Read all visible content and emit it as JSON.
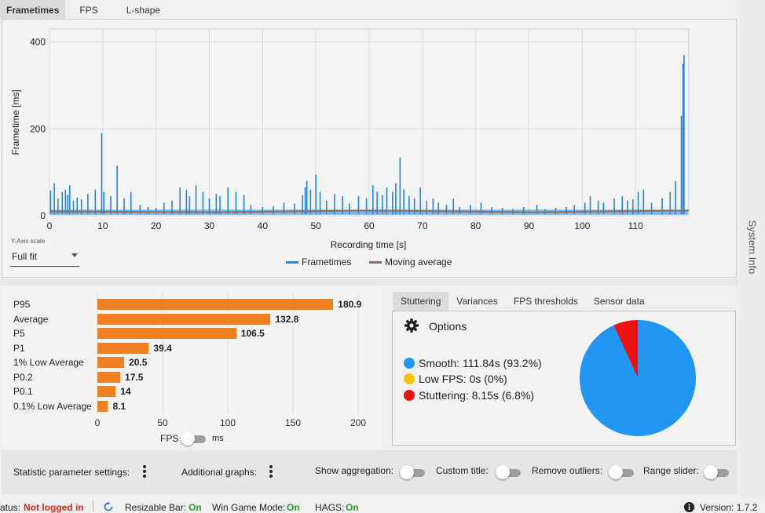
{
  "tabs": [
    "Frametimes",
    "FPS",
    "L-shape"
  ],
  "side_label": "System Info",
  "frametime_chart": {
    "ylabel": "Frametime [ms]",
    "xlabel": "Recording time [s]",
    "y_ticks": [
      "0",
      "200",
      "400"
    ],
    "x_ticks": [
      "0",
      "10",
      "20",
      "30",
      "40",
      "50",
      "60",
      "70",
      "80",
      "90",
      "100",
      "110"
    ],
    "y_axis_scale_label": "Y-Axis scale",
    "y_axis_scale_value": "Full fit",
    "legend": [
      {
        "label": "Frametimes",
        "color": "#1e88e5"
      },
      {
        "label": "Moving average",
        "color": "#8d6e63"
      }
    ]
  },
  "chart_data": [
    {
      "type": "line",
      "xlabel": "Recording time [s]",
      "ylabel": "Frametime [ms]",
      "xlim": [
        0,
        120
      ],
      "ylim": [
        0,
        430
      ],
      "grid": true,
      "legend_position": "bottom",
      "series": [
        {
          "name": "Frametimes",
          "color": "#1e88e5",
          "spikes": [
            [
              0.2,
              58
            ],
            [
              0.9,
              75
            ],
            [
              1.6,
              40
            ],
            [
              2.4,
              55
            ],
            [
              3.0,
              60
            ],
            [
              3.4,
              48
            ],
            [
              3.8,
              70
            ],
            [
              4.5,
              35
            ],
            [
              5.2,
              42
            ],
            [
              6.0,
              38
            ],
            [
              7.2,
              50
            ],
            [
              8.6,
              60
            ],
            [
              9.8,
              190
            ],
            [
              10.2,
              55
            ],
            [
              11.5,
              45
            ],
            [
              12.7,
              115
            ],
            [
              14.0,
              40
            ],
            [
              15.3,
              55
            ],
            [
              17.0,
              25
            ],
            [
              18.5,
              20
            ],
            [
              20.0,
              18
            ],
            [
              21.5,
              30
            ],
            [
              23.0,
              35
            ],
            [
              24.5,
              65
            ],
            [
              25.7,
              60
            ],
            [
              26.3,
              45
            ],
            [
              27.5,
              70
            ],
            [
              28.8,
              55
            ],
            [
              30.0,
              40
            ],
            [
              31.3,
              50
            ],
            [
              32.0,
              45
            ],
            [
              33.5,
              65
            ],
            [
              35.0,
              55
            ],
            [
              36.5,
              48
            ],
            [
              37.8,
              25
            ],
            [
              40.0,
              20
            ],
            [
              42.0,
              22
            ],
            [
              44.0,
              30
            ],
            [
              46.0,
              28
            ],
            [
              47.5,
              48
            ],
            [
              48.0,
              65
            ],
            [
              48.3,
              80
            ],
            [
              49.0,
              60
            ],
            [
              50.0,
              95
            ],
            [
              50.8,
              55
            ],
            [
              52.0,
              35
            ],
            [
              53.5,
              50
            ],
            [
              55.0,
              45
            ],
            [
              56.3,
              28
            ],
            [
              58.0,
              45
            ],
            [
              59.5,
              40
            ],
            [
              60.7,
              70
            ],
            [
              61.5,
              55
            ],
            [
              62.5,
              48
            ],
            [
              63.3,
              65
            ],
            [
              64.4,
              55
            ],
            [
              65.0,
              75
            ],
            [
              65.8,
              135
            ],
            [
              66.5,
              60
            ],
            [
              67.5,
              45
            ],
            [
              68.5,
              40
            ],
            [
              69.6,
              65
            ],
            [
              70.8,
              35
            ],
            [
              72.0,
              40
            ],
            [
              73.0,
              30
            ],
            [
              74.5,
              25
            ],
            [
              75.8,
              40
            ],
            [
              77.0,
              20
            ],
            [
              79.0,
              25
            ],
            [
              81.0,
              30
            ],
            [
              83.0,
              20
            ],
            [
              85.0,
              18
            ],
            [
              87.0,
              15
            ],
            [
              89.0,
              20
            ],
            [
              91.5,
              25
            ],
            [
              93.0,
              15
            ],
            [
              95.0,
              18
            ],
            [
              97.0,
              20
            ],
            [
              98.5,
              25
            ],
            [
              100.5,
              30
            ],
            [
              101.5,
              45
            ],
            [
              103.0,
              35
            ],
            [
              104.0,
              30
            ],
            [
              106.0,
              40
            ],
            [
              107.5,
              45
            ],
            [
              108.5,
              35
            ],
            [
              109.5,
              38
            ],
            [
              110.5,
              55
            ],
            [
              111.5,
              60
            ],
            [
              113.0,
              30
            ],
            [
              115.0,
              40
            ],
            [
              116.5,
              55
            ],
            [
              117.5,
              80
            ],
            [
              118.6,
              230
            ],
            [
              118.9,
              350
            ],
            [
              119.1,
              370
            ]
          ]
        },
        {
          "name": "Moving average",
          "color": "#8d6e63",
          "x": [
            0,
            30,
            60,
            90,
            120
          ],
          "y": [
            10,
            8,
            12,
            8,
            12
          ]
        }
      ]
    },
    {
      "type": "bar",
      "orientation": "horizontal",
      "categories": [
        "P95",
        "Average",
        "P5",
        "P1",
        "1% Low Average",
        "P0.2",
        "P0.1",
        "0.1% Low Average"
      ],
      "values": [
        180.9,
        132.8,
        106.5,
        39.4,
        20.5,
        17.5,
        14,
        8.1
      ],
      "value_labels": [
        "180.9",
        "132.8",
        "106.5",
        "39.4",
        "20.5",
        "17.5",
        "14",
        "8.1"
      ],
      "x_ticks": [
        "0",
        "50",
        "100",
        "150",
        "200"
      ],
      "xlim": [
        0,
        200
      ],
      "color": "#f07f22"
    },
    {
      "type": "pie",
      "categories": [
        "Smooth",
        "Low FPS",
        "Stuttering"
      ],
      "values": [
        93.2,
        0,
        6.8
      ],
      "colors": [
        "#2196f3",
        "#ffc107",
        "#ee1111"
      ]
    }
  ],
  "stats": {
    "unit_left": "FPS",
    "unit_right": "ms"
  },
  "right_tabs": [
    "Stuttering",
    "Variances",
    "FPS thresholds",
    "Sensor data"
  ],
  "stuttering": {
    "options_label": "Options",
    "items": [
      {
        "label": "Smooth:  111.84s (93.2%)",
        "color": "#2196f3"
      },
      {
        "label": "Low FPS:  0s (0%)",
        "color": "#ffc107"
      },
      {
        "label": "Stuttering:  8.15s (6.8%)",
        "color": "#ee1111"
      }
    ]
  },
  "bottom_bar": {
    "stat_param": "Statistic parameter settings:",
    "additional_graphs": "Additional graphs:",
    "show_aggregation": "Show aggregation:",
    "custom_title": "Custom title:",
    "remove_outliers": "Remove outliers:",
    "range_slider": "Range slider:"
  },
  "status_bar": {
    "status_label": "atus:",
    "status_value": "Not logged in",
    "resizable_bar_label": "Resizable Bar:",
    "resizable_bar_value": "On",
    "win_game_mode_label": "Win Game Mode:",
    "win_game_mode_value": "On",
    "hags_label": "HAGS:",
    "hags_value": "On",
    "version": "Version: 1.7.2"
  }
}
